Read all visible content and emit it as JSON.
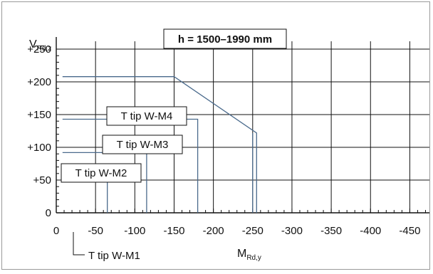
{
  "chart_data": {
    "type": "line",
    "title": "h = 1500–1990 mm",
    "ylabel": {
      "main": "V",
      "sub": "Rd,z"
    },
    "xlabel": {
      "main": "M",
      "sub": "Rd,y"
    },
    "x_ticks": [
      0,
      -50,
      -100,
      -150,
      -200,
      -250,
      -300,
      -350,
      -400,
      -450
    ],
    "x_tick_labels": [
      "0",
      "-50",
      "-100",
      "-150",
      "-200",
      "-250",
      "-300",
      "-350",
      "-400",
      "-450"
    ],
    "y_ticks": [
      0,
      50,
      100,
      150,
      200,
      250
    ],
    "y_tick_labels": [
      "0",
      "+50",
      "+100",
      "+150",
      "+200",
      "+250"
    ],
    "xlim": [
      0,
      -475
    ],
    "ylim": [
      0,
      262
    ],
    "grid": true,
    "series": [
      {
        "name": "T tip W-M1",
        "points": [
          [
            -8,
            51
          ],
          [
            -65,
            51
          ],
          [
            -65,
            0
          ]
        ]
      },
      {
        "name": "T tip W-M2",
        "points": [
          [
            -8,
            92
          ],
          [
            -115,
            92
          ],
          [
            -115,
            0
          ]
        ]
      },
      {
        "name": "T tip W-M3",
        "points": [
          [
            -8,
            143
          ],
          [
            -180,
            143
          ],
          [
            -180,
            0
          ]
        ]
      },
      {
        "name": "T tip W-M4",
        "points": [
          [
            -8,
            208
          ],
          [
            -150,
            208
          ],
          [
            -255,
            122
          ],
          [
            -255,
            0
          ]
        ]
      },
      {
        "name": "",
        "points": [
          [
            -250,
            122
          ],
          [
            -250,
            0
          ]
        ]
      }
    ],
    "series_labels": [
      "T tip W-M4",
      "T tip W-M3",
      "T tip W-M2",
      "T tip W-M1"
    ],
    "colors": {
      "series": "#4a6a8c",
      "grid": "#111111",
      "axis": "#111111"
    }
  }
}
